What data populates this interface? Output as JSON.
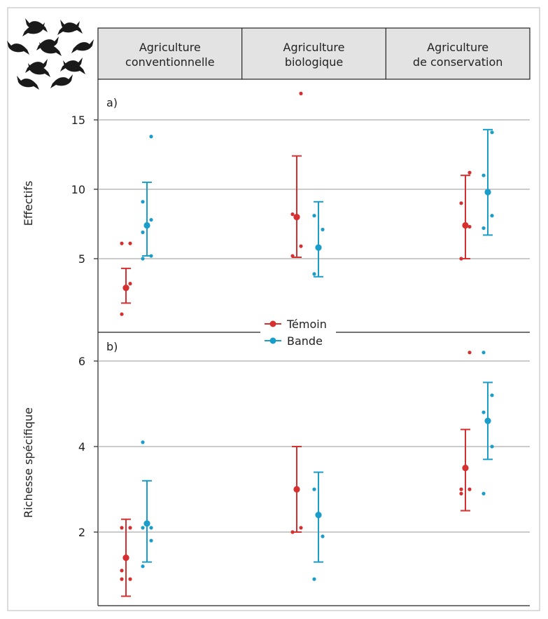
{
  "header": {
    "columns": [
      "Agriculture\nconventionnelle",
      "Agriculture\nbiologique",
      "Agriculture\nde conservation"
    ]
  },
  "legend": {
    "entries": [
      {
        "label": "Témoin",
        "color": "#d62f2f"
      },
      {
        "label": "Bande",
        "color": "#1a9ec9"
      }
    ],
    "placement": "center-between-panels"
  },
  "icon": {
    "name": "bird-silhouettes-icon"
  },
  "chart_data": [
    {
      "type": "scatter",
      "panel_label": "a)",
      "ylabel": "Effectifs",
      "ylim": [
        0,
        17
      ],
      "yticks": [
        5,
        10,
        15
      ],
      "grid": true,
      "categories": [
        "Agriculture conventionnelle",
        "Agriculture biologique",
        "Agriculture de conservation"
      ],
      "series": [
        {
          "name": "Témoin",
          "color": "#d62f2f",
          "mean": [
            2.9,
            8.0,
            7.4
          ],
          "error_low": [
            1.8,
            5.1,
            5.0
          ],
          "error_high": [
            4.3,
            12.4,
            11.0
          ],
          "points": [
            [
              1.0,
              3.2,
              6.1,
              6.1
            ],
            [
              5.2,
              5.9,
              8.2,
              16.9
            ],
            [
              5.0,
              7.3,
              9.0,
              11.2
            ]
          ]
        },
        {
          "name": "Bande",
          "color": "#1a9ec9",
          "mean": [
            7.4,
            5.8,
            9.8
          ],
          "error_low": [
            5.2,
            3.7,
            6.7
          ],
          "error_high": [
            10.5,
            9.1,
            14.3
          ],
          "points": [
            [
              5.0,
              5.2,
              6.9,
              7.8,
              9.1,
              13.8
            ],
            [
              3.9,
              7.1,
              8.1
            ],
            [
              7.2,
              8.1,
              11.0,
              14.1
            ]
          ]
        }
      ]
    },
    {
      "type": "scatter",
      "panel_label": "b)",
      "ylabel": "Richesse spécifique",
      "ylim": [
        0,
        6.6
      ],
      "yticks": [
        2,
        4,
        6
      ],
      "grid": true,
      "categories": [
        "Agriculture conventionnelle",
        "Agriculture biologique",
        "Agriculture de conservation"
      ],
      "series": [
        {
          "name": "Témoin",
          "color": "#d62f2f",
          "mean": [
            1.4,
            3.0,
            3.5
          ],
          "error_low": [
            0.5,
            2.0,
            2.5
          ],
          "error_high": [
            2.3,
            4.0,
            4.4
          ],
          "points": [
            [
              0.9,
              0.9,
              1.1,
              2.1,
              2.1
            ],
            [
              2.0,
              2.1
            ],
            [
              2.9,
              3.0,
              3.0,
              6.2
            ]
          ]
        },
        {
          "name": "Bande",
          "color": "#1a9ec9",
          "mean": [
            2.2,
            2.4,
            4.6
          ],
          "error_low": [
            1.3,
            1.3,
            3.7
          ],
          "error_high": [
            3.2,
            3.4,
            5.5
          ],
          "points": [
            [
              1.2,
              1.8,
              2.1,
              2.1,
              4.1
            ],
            [
              0.9,
              1.9,
              3.0
            ],
            [
              2.9,
              4.0,
              4.8,
              5.2,
              6.2
            ]
          ]
        }
      ]
    }
  ]
}
